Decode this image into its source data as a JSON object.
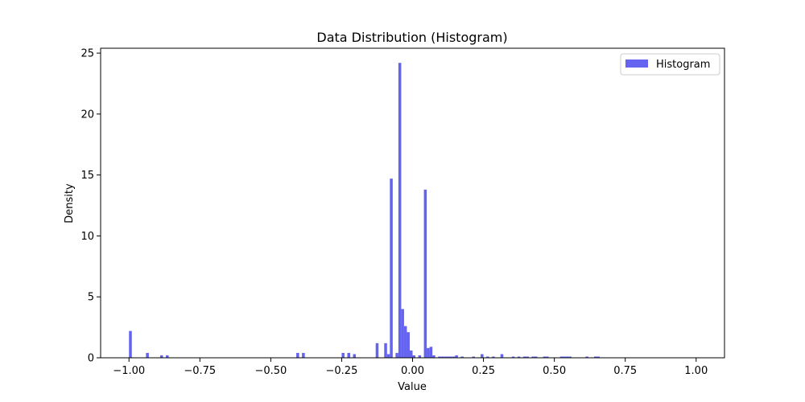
{
  "chart_data": {
    "type": "bar",
    "title": "Data Distribution (Histogram)",
    "xlabel": "Value",
    "ylabel": "Density",
    "xlim": [
      -1.1,
      1.1
    ],
    "ylim": [
      0,
      25.4
    ],
    "xticks": [
      -1.0,
      -0.75,
      -0.5,
      -0.25,
      0.0,
      0.25,
      0.5,
      0.75,
      1.0
    ],
    "xtick_labels": [
      "−1.00",
      "−0.75",
      "−0.50",
      "−0.25",
      "0.00",
      "0.25",
      "0.50",
      "0.75",
      "1.00"
    ],
    "yticks": [
      0,
      5,
      10,
      15,
      20,
      25
    ],
    "ytick_labels": [
      "0",
      "5",
      "10",
      "15",
      "20",
      "25"
    ],
    "bin_width": 0.01,
    "bar_color": "#6464f0",
    "grid": false,
    "legend_position": "top-right",
    "series": [
      {
        "name": "Histogram",
        "x": [
          -0.995,
          -0.935,
          -0.885,
          -0.865,
          -0.405,
          -0.385,
          -0.245,
          -0.225,
          -0.205,
          -0.125,
          -0.095,
          -0.085,
          -0.075,
          -0.055,
          -0.045,
          -0.035,
          -0.025,
          -0.015,
          -0.005,
          0.005,
          0.025,
          0.045,
          0.055,
          0.065,
          0.075,
          0.095,
          0.105,
          0.115,
          0.125,
          0.135,
          0.145,
          0.155,
          0.175,
          0.215,
          0.245,
          0.265,
          0.285,
          0.315,
          0.355,
          0.375,
          0.395,
          0.405,
          0.425,
          0.435,
          0.465,
          0.475,
          0.525,
          0.535,
          0.545,
          0.555,
          0.615,
          0.645,
          0.655
        ],
        "values": [
          2.2,
          0.4,
          0.2,
          0.2,
          0.4,
          0.4,
          0.4,
          0.4,
          0.3,
          1.2,
          1.2,
          0.3,
          14.7,
          0.4,
          24.2,
          4.0,
          2.6,
          2.1,
          0.6,
          0.2,
          0.2,
          13.8,
          0.8,
          0.9,
          0.2,
          0.1,
          0.1,
          0.1,
          0.1,
          0.1,
          0.1,
          0.2,
          0.1,
          0.1,
          0.3,
          0.1,
          0.1,
          0.3,
          0.1,
          0.1,
          0.1,
          0.1,
          0.1,
          0.1,
          0.1,
          0.1,
          0.1,
          0.1,
          0.1,
          0.1,
          0.1,
          0.1,
          0.1
        ]
      }
    ]
  }
}
